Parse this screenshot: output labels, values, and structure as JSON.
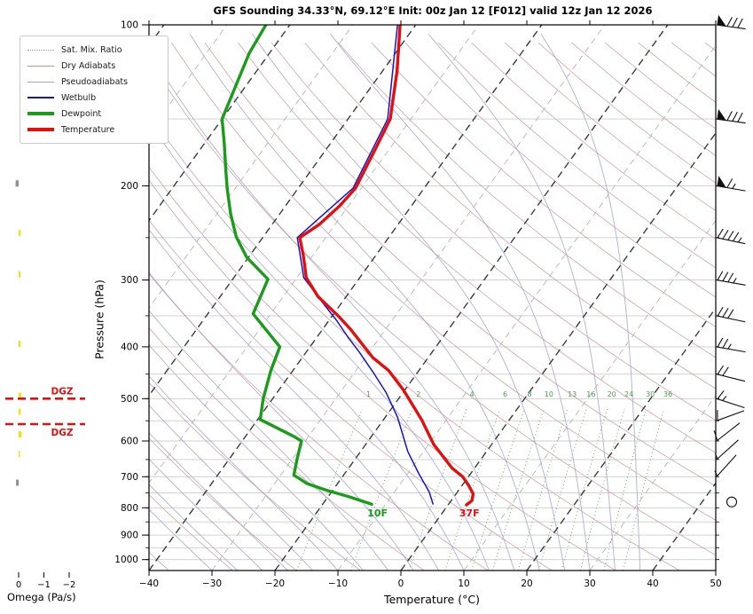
{
  "header": {
    "title": "GFS Sounding 34.33°N, 69.12°E Init: 00z Jan 12 [F012] valid 12z Jan 12 2026"
  },
  "axes": {
    "pressure": {
      "label": "Pressure (hPa)",
      "major_ticks": [
        100,
        200,
        300,
        400,
        500,
        600,
        700,
        800,
        900,
        1000
      ],
      "minor_step_hpa": 50,
      "range": [
        100,
        1048
      ]
    },
    "temperature": {
      "label": "Temperature (°C)",
      "ticks": [
        -40,
        -30,
        -20,
        -10,
        0,
        10,
        20,
        30,
        40,
        50
      ],
      "range": [
        -40,
        50
      ]
    },
    "omega": {
      "label": "Omega (Pa/s)",
      "ticks": [
        0,
        -1,
        -2
      ]
    }
  },
  "legend": {
    "items": [
      {
        "label": "Sat. Mix. Ratio",
        "style": "dotted",
        "color": "#999999",
        "weight": 1
      },
      {
        "label": "Dry Adiabats",
        "style": "solid",
        "color": "#c49494",
        "weight": 1
      },
      {
        "label": "Pseudoadiabats",
        "style": "solid",
        "color": "#a6a6d2",
        "weight": 1
      },
      {
        "label": "Wetbulb",
        "style": "solid",
        "color": "#1414cc",
        "weight": 2
      },
      {
        "label": "Dewpoint",
        "style": "solid",
        "color": "#1a9c1a",
        "weight": 4
      },
      {
        "label": "Temperature",
        "style": "solid",
        "color": "#e01010",
        "weight": 4
      }
    ]
  },
  "chart_data": {
    "type": "line",
    "variant": "skew-t-log-p sounding",
    "title": "GFS Sounding 34.33°N, 69.12°E Init: 00z Jan 12 [F012] valid 12z Jan 12 2026",
    "xlabel": "Temperature (°C)",
    "ylabel": "Pressure (hPa)",
    "xlim": [
      -40,
      50
    ],
    "ylim": [
      1048,
      100
    ],
    "grid": "horizontal 50 hPa",
    "legend_position": "upper-left",
    "series": [
      {
        "name": "Temperature",
        "color": "#e01010",
        "units": "degC vs hPa",
        "points": [
          [
            100,
            -62.5
          ],
          [
            122,
            -57.7
          ],
          [
            150,
            -53.3
          ],
          [
            169,
            -52.3
          ],
          [
            202,
            -50.9
          ],
          [
            218,
            -51.4
          ],
          [
            236,
            -52.5
          ],
          [
            250,
            -54.1
          ],
          [
            270,
            -51.5
          ],
          [
            297,
            -48.5
          ],
          [
            322,
            -44.5
          ],
          [
            351,
            -38.9
          ],
          [
            372,
            -35.4
          ],
          [
            419,
            -28.8
          ],
          [
            443,
            -24.8
          ],
          [
            482,
            -20.2
          ],
          [
            548,
            -13.9
          ],
          [
            609,
            -9.2
          ],
          [
            674,
            -3.6
          ],
          [
            700,
            -0.9
          ],
          [
            726,
            1.0
          ],
          [
            753,
            2.7
          ],
          [
            776,
            3.3
          ],
          [
            790,
            2.9
          ]
        ]
      },
      {
        "name": "Dewpoint",
        "color": "#1a9c1a",
        "units": "degC vs hPa",
        "points": [
          [
            100,
            -83.8
          ],
          [
            113,
            -83.2
          ],
          [
            128,
            -81.8
          ],
          [
            150,
            -80.0
          ],
          [
            167,
            -76.8
          ],
          [
            188,
            -73.4
          ],
          [
            202,
            -71.3
          ],
          [
            225,
            -67.9
          ],
          [
            249,
            -64.3
          ],
          [
            272,
            -60.3
          ],
          [
            299,
            -54.4
          ],
          [
            347,
            -52.8
          ],
          [
            400,
            -44.8
          ],
          [
            443,
            -43.5
          ],
          [
            500,
            -41.5
          ],
          [
            547,
            -39.6
          ],
          [
            588,
            -32.4
          ],
          [
            600,
            -30.6
          ],
          [
            646,
            -29.3
          ],
          [
            695,
            -27.9
          ],
          [
            721,
            -24.8
          ],
          [
            743,
            -20.8
          ],
          [
            762,
            -16.8
          ],
          [
            788,
            -12.2
          ]
        ]
      },
      {
        "name": "Wetbulb",
        "color": "#1414cc",
        "units": "degC vs hPa",
        "points": [
          [
            100,
            -62.9
          ],
          [
            150,
            -53.7
          ],
          [
            202,
            -51.3
          ],
          [
            250,
            -54.5
          ],
          [
            297,
            -48.9
          ],
          [
            328,
            -43.5
          ],
          [
            357,
            -38.8
          ],
          [
            385,
            -34.9
          ],
          [
            409,
            -31.6
          ],
          [
            446,
            -27.1
          ],
          [
            487,
            -22.7
          ],
          [
            541,
            -18.1
          ],
          [
            628,
            -12.5
          ],
          [
            691,
            -8.2
          ],
          [
            747,
            -4.5
          ],
          [
            787,
            -2.5
          ]
        ]
      }
    ],
    "surface_labels": [
      {
        "text": "10F",
        "color": "#1a9c1a",
        "p": 818,
        "t": -10.3
      },
      {
        "text": "37F",
        "color": "#e01010",
        "p": 818,
        "t": 4.3
      }
    ],
    "mixing_ratio_lines_gkg": [
      1,
      2,
      4,
      6,
      8,
      10,
      13,
      16,
      20,
      24,
      30,
      36
    ],
    "background": {
      "isotherm_step_c": 10,
      "isotherm_bold_step_c": 20,
      "dry_adiabats_theta_c": {
        "start": -40,
        "end": 230,
        "step": 10
      },
      "pseudoadiabats_thetaw_c": {
        "start": -30,
        "end": 38,
        "step": 4
      },
      "colors": {
        "isotherm_bold": "#3a3a3a",
        "isotherm_minor": "#b5b5b5",
        "dry_adiabat": "#c49494",
        "pseudoadiabat": "#a6a6d2",
        "mixing_ratio": "#4d9a4d",
        "isobar_grid": "#cccccc"
      }
    },
    "dgz": {
      "label": "DGZ",
      "color": "#e01010",
      "levels_hpa": [
        500,
        558
      ]
    },
    "omega_bars": [
      {
        "p": 198,
        "value": 0.12,
        "color": "#8f8f8f"
      },
      {
        "p": 245,
        "value": -0.08,
        "color": "#f2e20a"
      },
      {
        "p": 293,
        "value": -0.07,
        "color": "#f2e20a"
      },
      {
        "p": 395,
        "value": -0.08,
        "color": "#f2e20a"
      },
      {
        "p": 494,
        "value": -0.1,
        "color": "#f2e20a"
      },
      {
        "p": 529,
        "value": -0.08,
        "color": "#f2e20a"
      },
      {
        "p": 583,
        "value": -0.12,
        "color": "#f2e20a"
      },
      {
        "p": 635,
        "value": -0.04,
        "color": "#f2e20a"
      },
      {
        "p": 718,
        "value": 0.1,
        "color": "#8f8f8f"
      }
    ],
    "wind_barbs": [
      {
        "p": 100,
        "pennants": 1,
        "full": 3,
        "half": 0,
        "angle": 8
      },
      {
        "p": 150,
        "pennants": 1,
        "full": 3,
        "half": 0,
        "angle": 8
      },
      {
        "p": 200,
        "pennants": 1,
        "full": 1,
        "half": 1,
        "angle": 10
      },
      {
        "p": 250,
        "pennants": 0,
        "full": 4,
        "half": 1,
        "angle": 12
      },
      {
        "p": 300,
        "pennants": 0,
        "full": 3,
        "half": 1,
        "angle": 10
      },
      {
        "p": 350,
        "pennants": 0,
        "full": 3,
        "half": 0,
        "angle": 12
      },
      {
        "p": 400,
        "pennants": 0,
        "full": 2,
        "half": 1,
        "angle": 10
      },
      {
        "p": 450,
        "pennants": 0,
        "full": 2,
        "half": 0,
        "angle": 14
      },
      {
        "p": 500,
        "pennants": 0,
        "full": 1,
        "half": 1,
        "angle": 18
      },
      {
        "p": 550,
        "pennants": 0,
        "full": 1,
        "half": 0,
        "angle": -20
      },
      {
        "p": 600,
        "pennants": 0,
        "full": 1,
        "half": 0,
        "angle": -38
      },
      {
        "p": 650,
        "pennants": 0,
        "full": 0,
        "half": 1,
        "angle": -42
      },
      {
        "p": 700,
        "pennants": 0,
        "full": 0,
        "half": 1,
        "angle": -48
      },
      {
        "p": 780,
        "calm": true
      }
    ]
  }
}
